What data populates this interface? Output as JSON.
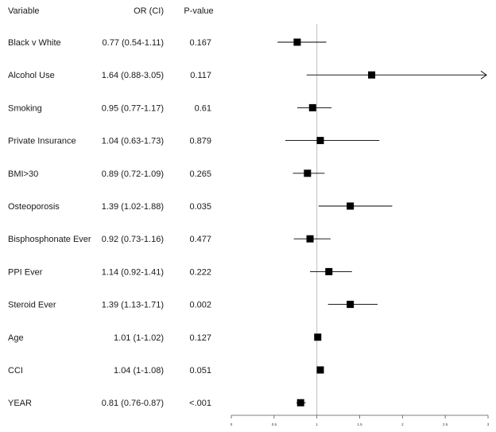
{
  "chart_data": {
    "type": "forest",
    "columns": {
      "variable": "Variable",
      "or_ci": "OR (CI)",
      "pvalue": "P-value"
    },
    "rows": [
      {
        "variable": "Black v White",
        "or_text": "0.77 (0.54-1.11)",
        "p_text": "0.167",
        "or": 0.77,
        "lo": 0.54,
        "hi": 1.11
      },
      {
        "variable": "Alcohol Use",
        "or_text": "1.64 (0.88-3.05)",
        "p_text": "0.117",
        "or": 1.64,
        "lo": 0.88,
        "hi": 3.05,
        "truncated_high": true
      },
      {
        "variable": "Smoking",
        "or_text": "0.95 (0.77-1.17)",
        "p_text": "0.61",
        "or": 0.95,
        "lo": 0.77,
        "hi": 1.17
      },
      {
        "variable": "Private Insurance",
        "or_text": "1.04 (0.63-1.73)",
        "p_text": "0.879",
        "or": 1.04,
        "lo": 0.63,
        "hi": 1.73
      },
      {
        "variable": "BMI>30",
        "or_text": "0.89 (0.72-1.09)",
        "p_text": "0.265",
        "or": 0.89,
        "lo": 0.72,
        "hi": 1.09
      },
      {
        "variable": "Osteoporosis",
        "or_text": "1.39 (1.02-1.88)",
        "p_text": "0.035",
        "or": 1.39,
        "lo": 1.02,
        "hi": 1.88
      },
      {
        "variable": "Bisphosphonate Ever",
        "or_text": "0.92 (0.73-1.16)",
        "p_text": "0.477",
        "or": 0.92,
        "lo": 0.73,
        "hi": 1.16
      },
      {
        "variable": "PPI Ever",
        "or_text": "1.14 (0.92-1.41)",
        "p_text": "0.222",
        "or": 1.14,
        "lo": 0.92,
        "hi": 1.41
      },
      {
        "variable": "Steroid Ever",
        "or_text": "1.39 (1.13-1.71)",
        "p_text": "0.002",
        "or": 1.39,
        "lo": 1.13,
        "hi": 1.71
      },
      {
        "variable": "Age",
        "or_text": "1.01 (1-1.02)",
        "p_text": "0.127",
        "or": 1.01,
        "lo": 1.0,
        "hi": 1.02
      },
      {
        "variable": "CCI",
        "or_text": "1.04 (1-1.08)",
        "p_text": "0.051",
        "or": 1.04,
        "lo": 1.0,
        "hi": 1.08
      },
      {
        "variable": "YEAR",
        "or_text": "0.81 (0.76-0.87)",
        "p_text": "<.001",
        "or": 0.81,
        "lo": 0.76,
        "hi": 0.87
      }
    ],
    "x_ticks": [
      "0",
      "0.5",
      "1",
      "1.5",
      "2",
      "2.5",
      "3"
    ],
    "xlim": [
      0,
      3
    ],
    "reference_line": 1,
    "colors": {
      "marker": "#000000",
      "ci_line": "#000000",
      "reference": "#c0c0c0",
      "axis": "#555555"
    }
  }
}
